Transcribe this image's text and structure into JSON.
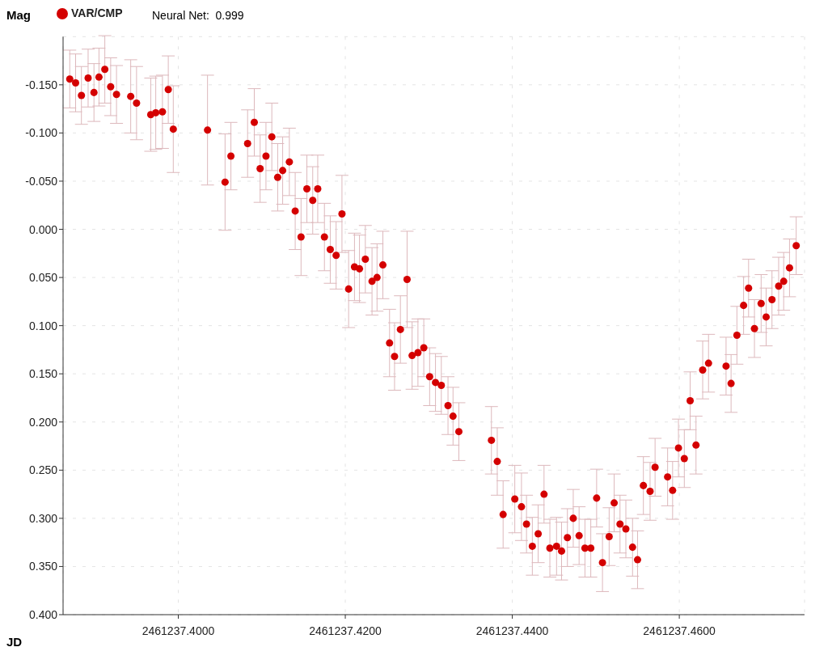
{
  "chart_data": {
    "type": "scatter",
    "xlabel": "JD",
    "ylabel": "Mag",
    "annotations": [
      "Neural Net:  0.999"
    ],
    "legend": "top left",
    "marker": "circle",
    "grid": true,
    "xlim": [
      2461237.3862,
      2461237.475
    ],
    "xticks": [
      {
        "value": 2461237.4,
        "label": "2461237.4000"
      },
      {
        "value": 2461237.42,
        "label": "2461237.4200"
      },
      {
        "value": 2461237.44,
        "label": "2461237.4400"
      },
      {
        "value": 2461237.46,
        "label": "2461237.4600"
      }
    ],
    "ylim": [
      0.4,
      -0.2
    ],
    "yticks": [
      {
        "value": -0.15,
        "label": "-0.150"
      },
      {
        "value": -0.1,
        "label": "-0.100"
      },
      {
        "value": -0.05,
        "label": "-0.050"
      },
      {
        "value": 0,
        "label": "0.000"
      },
      {
        "value": 0.05,
        "label": "0.050"
      },
      {
        "value": 0.1,
        "label": "0.100"
      },
      {
        "value": 0.15,
        "label": "0.150"
      },
      {
        "value": 0.2,
        "label": "0.200"
      },
      {
        "value": 0.25,
        "label": "0.250"
      },
      {
        "value": 0.3,
        "label": "0.300"
      },
      {
        "value": 0.35,
        "label": "0.350"
      },
      {
        "value": 0.4,
        "label": "0.400"
      }
    ],
    "series": [
      {
        "name": "VAR/CMP",
        "color": "#d40000",
        "x": [
          2461237.387,
          2461237.3877,
          2461237.3884,
          2461237.3892,
          2461237.3899,
          2461237.3905,
          2461237.3912,
          2461237.3919,
          2461237.3926,
          2461237.3943,
          2461237.395,
          2461237.3967,
          2461237.3973,
          2461237.3981,
          2461237.3988,
          2461237.3994,
          2461237.4035,
          2461237.4056,
          2461237.4063,
          2461237.4083,
          2461237.4091,
          2461237.4098,
          2461237.4105,
          2461237.4112,
          2461237.4119,
          2461237.4125,
          2461237.4133,
          2461237.414,
          2461237.4147,
          2461237.4154,
          2461237.4161,
          2461237.4167,
          2461237.4175,
          2461237.4182,
          2461237.4189,
          2461237.4196,
          2461237.4204,
          2461237.4211,
          2461237.4217,
          2461237.4224,
          2461237.4232,
          2461237.4238,
          2461237.4245,
          2461237.4253,
          2461237.4259,
          2461237.4266,
          2461237.4274,
          2461237.428,
          2461237.4287,
          2461237.4294,
          2461237.4301,
          2461237.4308,
          2461237.4315,
          2461237.4323,
          2461237.4329,
          2461237.4336,
          2461237.4375,
          2461237.4382,
          2461237.4389,
          2461237.4403,
          2461237.4411,
          2461237.4417,
          2461237.4424,
          2461237.4431,
          2461237.4438,
          2461237.4445,
          2461237.4453,
          2461237.4459,
          2461237.4466,
          2461237.4473,
          2461237.448,
          2461237.4487,
          2461237.4494,
          2461237.4501,
          2461237.4508,
          2461237.4516,
          2461237.4522,
          2461237.4529,
          2461237.4536,
          2461237.4544,
          2461237.455,
          2461237.4557,
          2461237.4565,
          2461237.4571,
          2461237.4586,
          2461237.4592,
          2461237.4599,
          2461237.4606,
          2461237.4613,
          2461237.462,
          2461237.4628,
          2461237.4635,
          2461237.4656,
          2461237.4662,
          2461237.4669,
          2461237.4677,
          2461237.4683,
          2461237.469,
          2461237.4698,
          2461237.4704,
          2461237.4711,
          2461237.4719,
          2461237.4725,
          2461237.4732,
          2461237.474
        ],
        "values": [
          -0.156,
          -0.152,
          -0.139,
          -0.157,
          -0.142,
          -0.158,
          -0.166,
          -0.148,
          -0.14,
          -0.138,
          -0.131,
          -0.119,
          -0.121,
          -0.122,
          -0.145,
          -0.104,
          -0.103,
          -0.049,
          -0.076,
          -0.089,
          -0.111,
          -0.063,
          -0.076,
          -0.096,
          -0.054,
          -0.061,
          -0.07,
          -0.019,
          0.008,
          -0.042,
          -0.03,
          -0.042,
          0.008,
          0.021,
          0.027,
          -0.016,
          0.062,
          0.039,
          0.041,
          0.031,
          0.054,
          0.05,
          0.037,
          0.118,
          0.132,
          0.104,
          0.052,
          0.131,
          0.128,
          0.123,
          0.153,
          0.159,
          0.162,
          0.183,
          0.194,
          0.21,
          0.219,
          0.241,
          0.296,
          0.28,
          0.288,
          0.306,
          0.329,
          0.316,
          0.275,
          0.331,
          0.329,
          0.334,
          0.32,
          0.3,
          0.318,
          0.331,
          0.331,
          0.279,
          0.346,
          0.319,
          0.284,
          0.306,
          0.311,
          0.33,
          0.343,
          0.266,
          0.272,
          0.247,
          0.257,
          0.271,
          0.227,
          0.238,
          0.178,
          0.224,
          0.146,
          0.139,
          0.142,
          0.16,
          0.11,
          0.079,
          0.061,
          0.103,
          0.077,
          0.091,
          0.073,
          0.059,
          0.054,
          0.04,
          0.017
        ],
        "errors": [
          0.03,
          0.03,
          0.03,
          0.03,
          0.03,
          0.03,
          0.035,
          0.03,
          0.03,
          0.038,
          0.038,
          0.038,
          0.038,
          0.038,
          0.035,
          0.045,
          0.057,
          0.05,
          0.035,
          0.035,
          0.035,
          0.035,
          0.035,
          0.035,
          0.035,
          0.035,
          0.035,
          0.04,
          0.04,
          0.035,
          0.035,
          0.035,
          0.035,
          0.035,
          0.035,
          0.04,
          0.04,
          0.035,
          0.035,
          0.035,
          0.035,
          0.035,
          0.035,
          0.035,
          0.035,
          0.035,
          0.05,
          0.035,
          0.035,
          0.03,
          0.03,
          0.03,
          0.03,
          0.03,
          0.03,
          0.03,
          0.035,
          0.035,
          0.035,
          0.035,
          0.035,
          0.03,
          0.03,
          0.03,
          0.03,
          0.03,
          0.03,
          0.03,
          0.03,
          0.03,
          0.03,
          0.03,
          0.03,
          0.03,
          0.03,
          0.03,
          0.03,
          0.03,
          0.03,
          0.03,
          0.03,
          0.03,
          0.03,
          0.03,
          0.03,
          0.03,
          0.03,
          0.03,
          0.03,
          0.03,
          0.03,
          0.03,
          0.03,
          0.03,
          0.03,
          0.03,
          0.03,
          0.03,
          0.03,
          0.03,
          0.03,
          0.03,
          0.03,
          0.03,
          0.03
        ]
      }
    ]
  }
}
